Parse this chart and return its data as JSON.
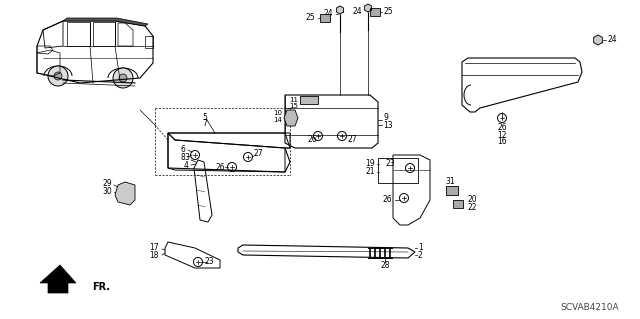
{
  "diagram_code": "SCVAB4210A",
  "background_color": "#ffffff",
  "fig_width": 6.4,
  "fig_height": 3.19,
  "dpi": 100,
  "labels": {
    "fr": "FR.",
    "code": "SCVAB4210A"
  }
}
